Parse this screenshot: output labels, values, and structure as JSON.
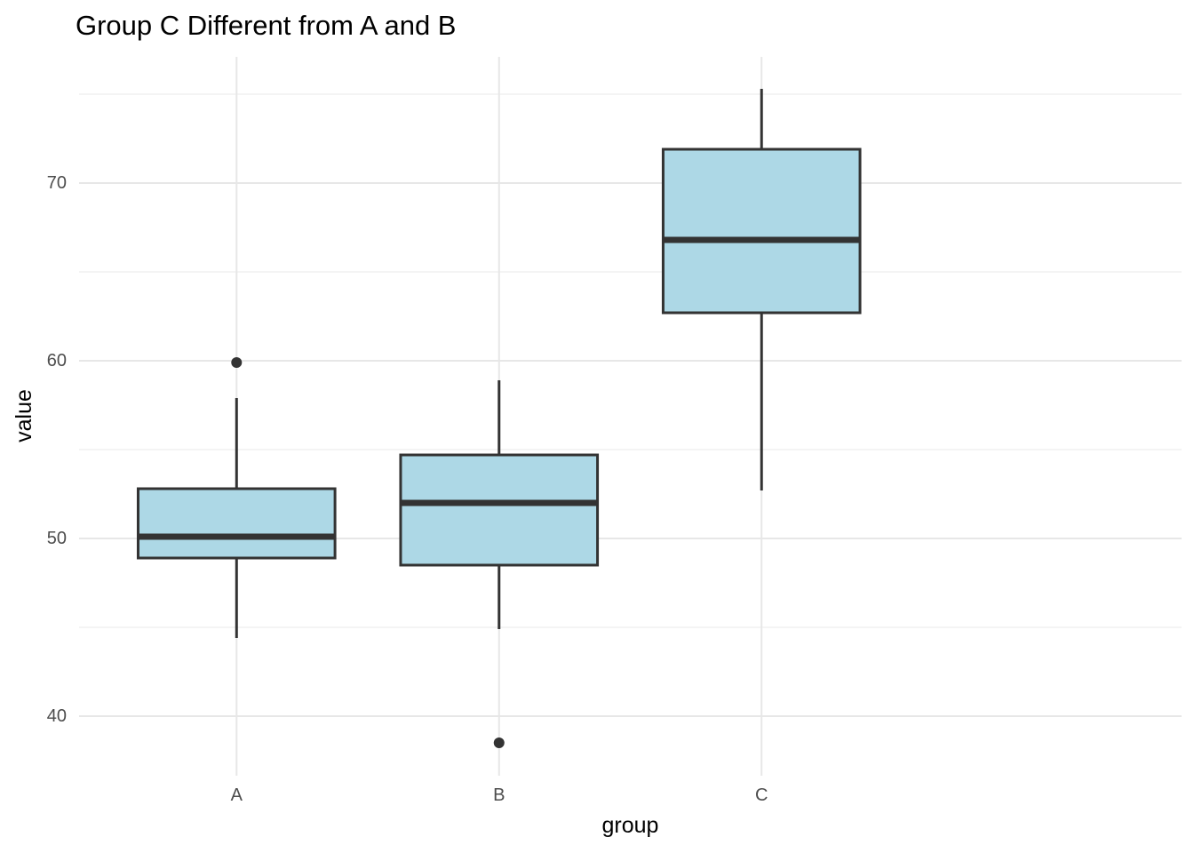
{
  "chart_data": {
    "type": "boxplot",
    "title": "Group C Different from A and B",
    "xlabel": "group",
    "ylabel": "value",
    "categories": [
      "A",
      "B",
      "C"
    ],
    "series": [
      {
        "name": "A",
        "min": 44.4,
        "q1": 48.9,
        "median": 50.1,
        "q3": 52.8,
        "max": 57.9,
        "outliers": [
          59.9
        ]
      },
      {
        "name": "B",
        "min": 44.9,
        "q1": 48.5,
        "median": 52.0,
        "q3": 54.7,
        "max": 58.9,
        "outliers": [
          38.5
        ]
      },
      {
        "name": "C",
        "min": 52.7,
        "q1": 62.7,
        "median": 66.8,
        "q3": 71.9,
        "max": 75.3,
        "outliers": []
      }
    ],
    "y_ticks": [
      40,
      50,
      60,
      70
    ],
    "y_minor_ticks": [
      45,
      55,
      65,
      75
    ],
    "ylim": [
      36.65,
      77.1
    ],
    "grid": true,
    "legend": false,
    "layout": {
      "x_expand_units": 0.6,
      "box_width_units": 0.75
    },
    "colors": {
      "box_fill": "#ADD8E6",
      "box_stroke": "#333333",
      "median_stroke": "#333333",
      "outlier_fill": "#333333",
      "grid_major": "#E7E7E7",
      "grid_minor": "#F1F1F1",
      "tick_label": "#4D4D4D",
      "axis_title": "#000000",
      "title": "#000000",
      "background": "#FFFFFF"
    }
  }
}
